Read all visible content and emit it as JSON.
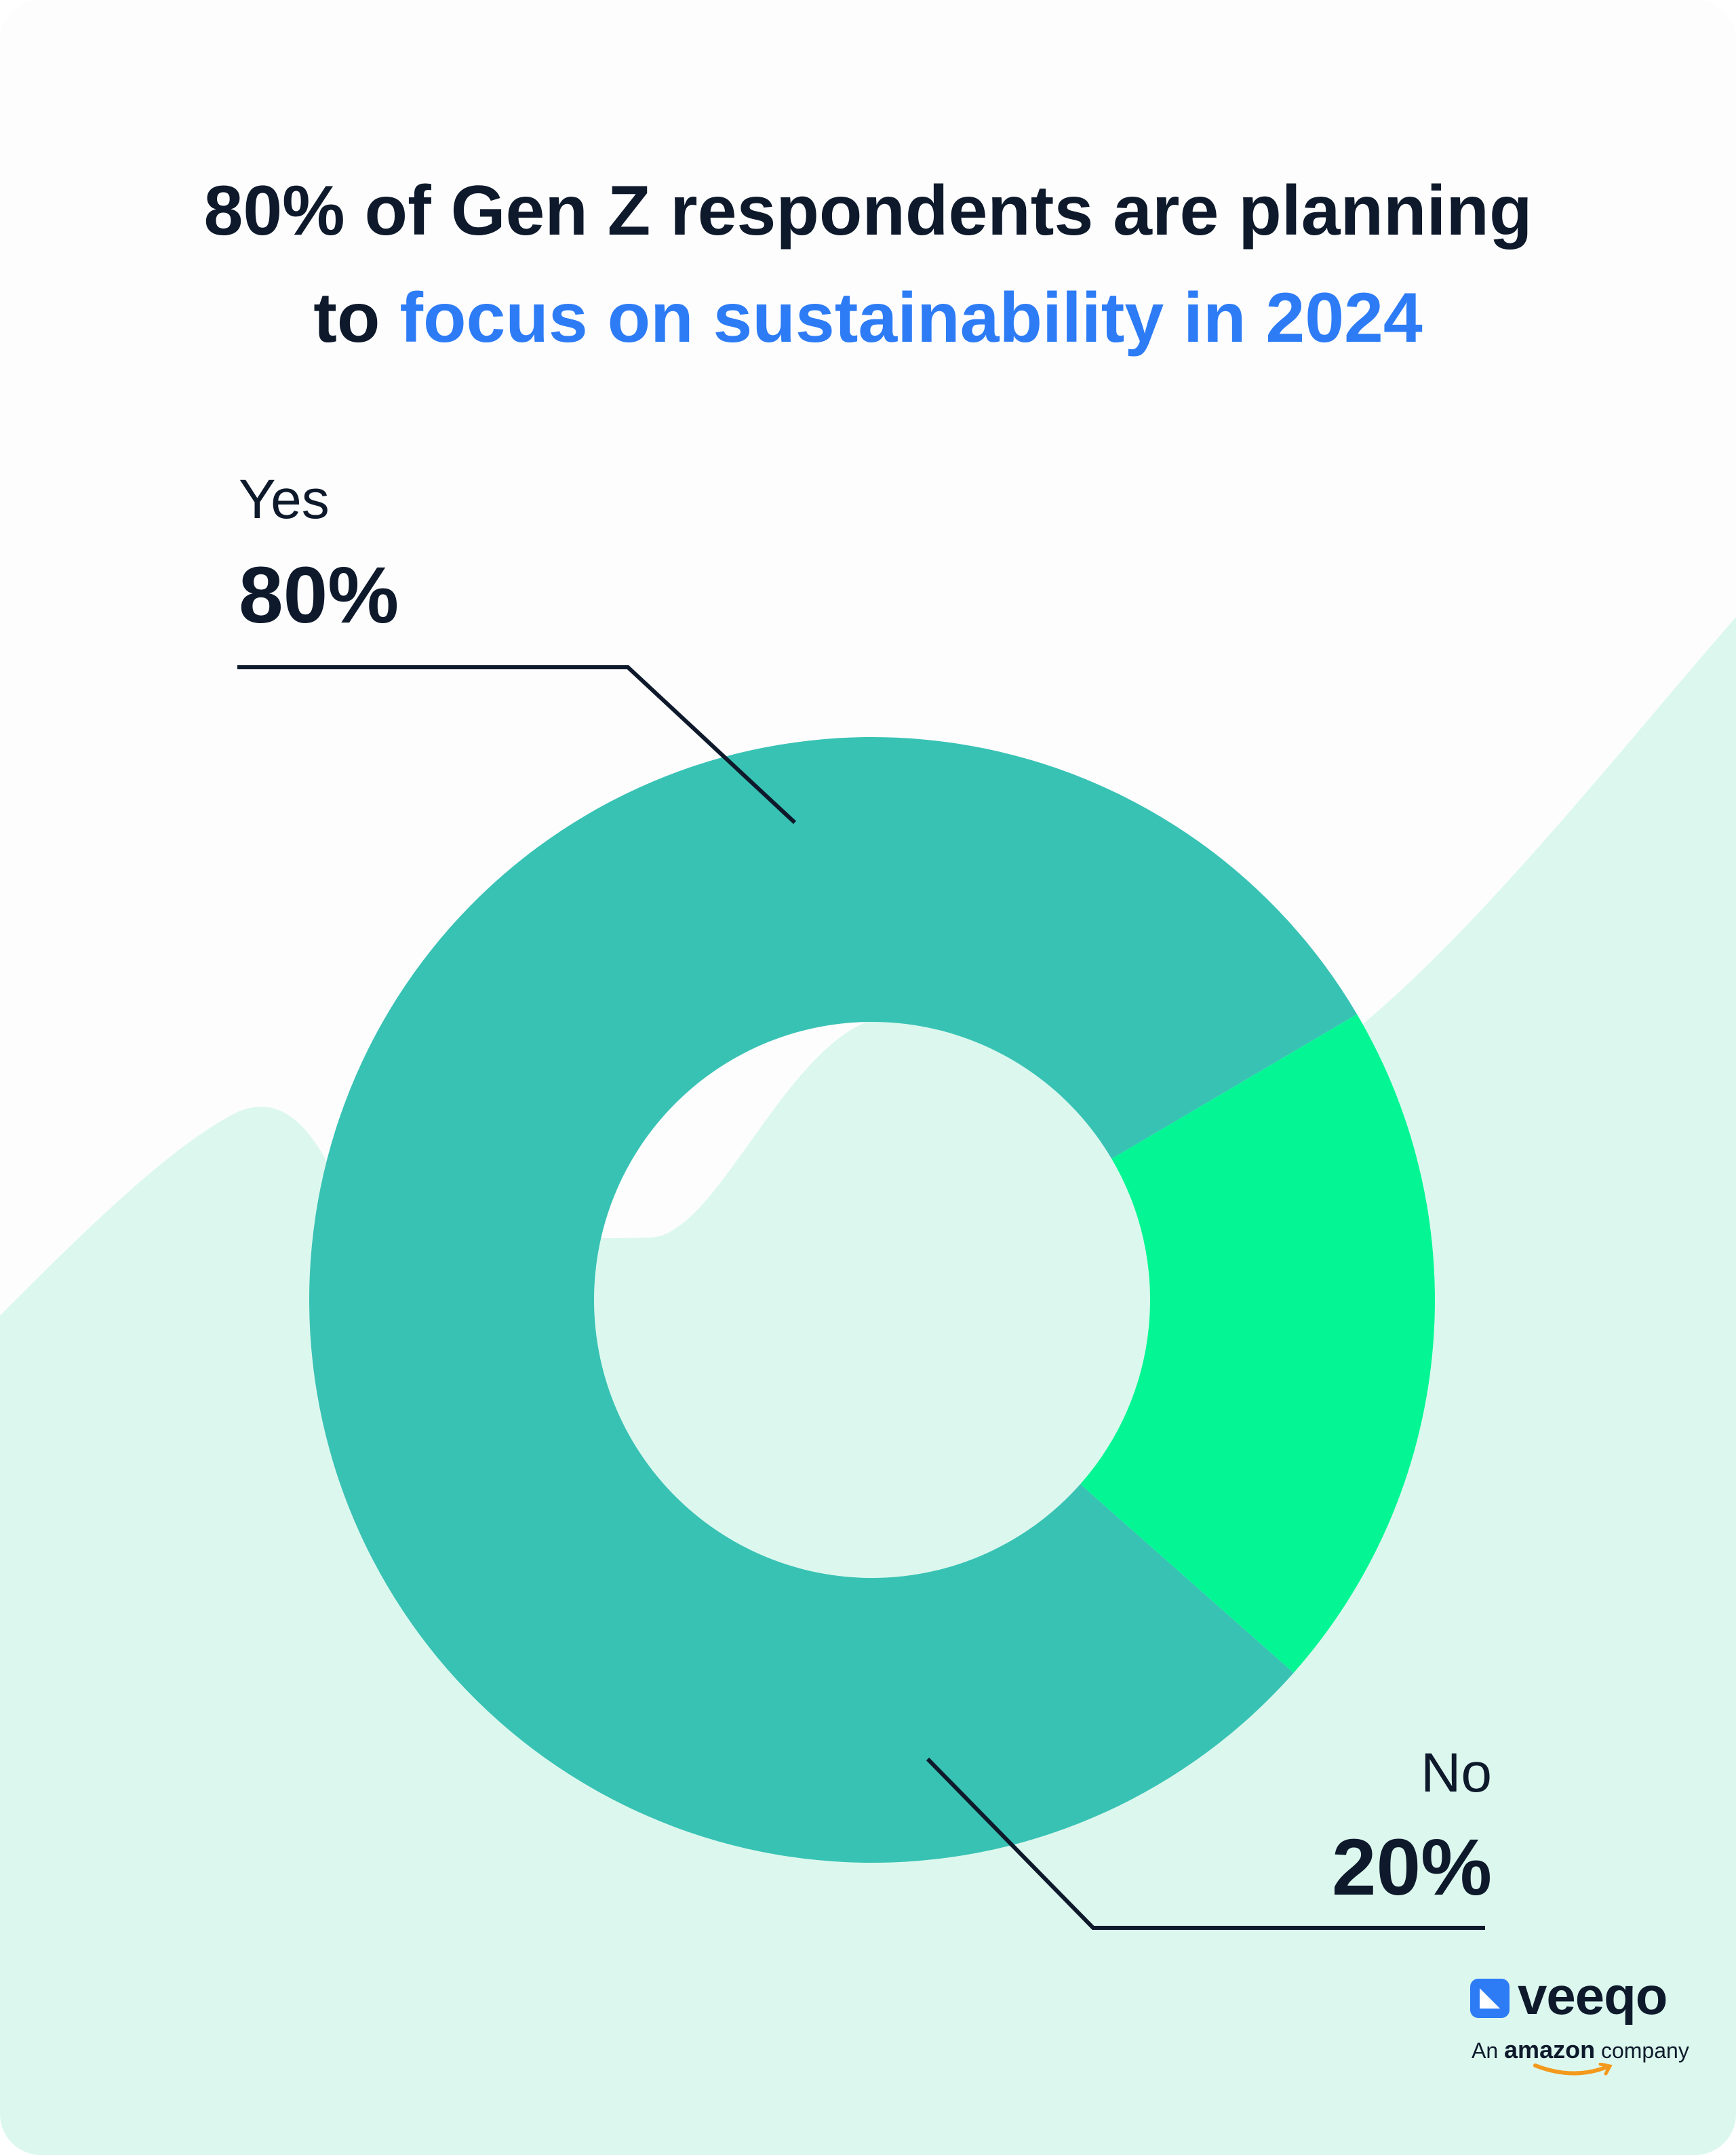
{
  "title": {
    "line1": "80% of Gen Z respondents are planning",
    "line2_prefix": "to ",
    "line2_accent": "focus on sustainability in 2024"
  },
  "colors": {
    "accent_text": "#2d7cf6",
    "yes_slice": "#38c2b4",
    "no_slice": "#04f694",
    "background_hill": "#dcf8ee",
    "text": "#0e1a2b"
  },
  "chart_data": {
    "type": "pie",
    "variant": "donut",
    "categories": [
      "Yes",
      "No"
    ],
    "values": [
      80,
      20
    ],
    "data_labels": [
      "80%",
      "20%"
    ]
  },
  "logo": {
    "wordmark": "veeqo",
    "tagline_prefix": "An ",
    "tagline_brand": "amazon",
    "tagline_suffix": " company"
  }
}
